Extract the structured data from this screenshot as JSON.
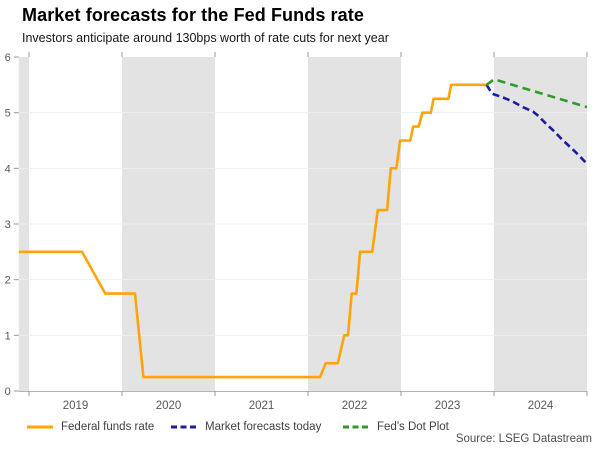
{
  "chart_data": {
    "type": "line",
    "title": "Market forecasts for the Fed Funds rate",
    "subtitle": "Investors anticipate around 130bps worth of rate cuts for next year",
    "source": "Source: LSEG Datastream",
    "ylabel": "",
    "xlabel": "",
    "grid": "horizontal",
    "legend_position": "bottom",
    "y_axis": {
      "min": 0,
      "max": 6,
      "ticks": [
        0,
        1,
        2,
        3,
        4,
        5,
        6
      ]
    },
    "x_axis": {
      "domain": [
        2018.89,
        2025.0
      ],
      "boundaries": [
        2019,
        2020,
        2021,
        2022,
        2023,
        2024,
        2025
      ],
      "labels": [
        "2019",
        "2020",
        "2021",
        "2022",
        "2023",
        "2024"
      ],
      "label_positions": [
        2019.5,
        2020.5,
        2021.5,
        2022.5,
        2023.5,
        2024.5
      ]
    },
    "shaded_bands": [
      [
        2018.89,
        2019.0
      ],
      [
        2020.0,
        2021.0
      ],
      [
        2022.0,
        2023.0
      ],
      [
        2024.0,
        2025.0
      ]
    ],
    "series": [
      {
        "key": "federal-funds-rate",
        "name": "Federal funds rate",
        "color": "#FFA408",
        "style": "solid",
        "dash": "",
        "points": [
          [
            2018.89,
            2.5
          ],
          [
            2019.57,
            2.5
          ],
          [
            2019.82,
            1.75
          ],
          [
            2020.14,
            1.75
          ],
          [
            2020.23,
            0.25
          ],
          [
            2022.13,
            0.25
          ],
          [
            2022.19,
            0.5
          ],
          [
            2022.32,
            0.5
          ],
          [
            2022.39,
            1.0
          ],
          [
            2022.43,
            1.0
          ],
          [
            2022.47,
            1.75
          ],
          [
            2022.52,
            1.75
          ],
          [
            2022.56,
            2.5
          ],
          [
            2022.69,
            2.5
          ],
          [
            2022.75,
            3.25
          ],
          [
            2022.85,
            3.25
          ],
          [
            2022.89,
            4.0
          ],
          [
            2022.95,
            4.0
          ],
          [
            2022.99,
            4.5
          ],
          [
            2023.1,
            4.5
          ],
          [
            2023.13,
            4.75
          ],
          [
            2023.19,
            4.75
          ],
          [
            2023.23,
            5.0
          ],
          [
            2023.32,
            5.0
          ],
          [
            2023.35,
            5.25
          ],
          [
            2023.51,
            5.25
          ],
          [
            2023.54,
            5.5
          ],
          [
            2023.92,
            5.5
          ]
        ]
      },
      {
        "key": "market-forecasts-today",
        "name": "Market forecasts today",
        "color": "#1B1BA3",
        "style": "dashed",
        "dash": "7 4",
        "points": [
          [
            2023.92,
            5.5
          ],
          [
            2023.98,
            5.34
          ],
          [
            2024.1,
            5.27
          ],
          [
            2024.2,
            5.2
          ],
          [
            2024.31,
            5.1
          ],
          [
            2024.42,
            5.02
          ],
          [
            2024.47,
            4.95
          ],
          [
            2024.56,
            4.8
          ],
          [
            2024.65,
            4.66
          ],
          [
            2024.73,
            4.52
          ],
          [
            2024.84,
            4.35
          ],
          [
            2024.92,
            4.22
          ],
          [
            2025.0,
            4.08
          ]
        ]
      },
      {
        "key": "feds-dot-plot",
        "name": "Fed's Dot Plot",
        "color": "#2E9B2E",
        "style": "dashed",
        "dash": "8 5",
        "points": [
          [
            2023.92,
            5.5
          ],
          [
            2024.0,
            5.6
          ],
          [
            2025.0,
            5.1
          ]
        ]
      }
    ],
    "colors": {
      "band": "#e3e3e3",
      "grid": "#efefef",
      "axis": "#b3b3b3",
      "tick": "#999999",
      "label": "#595959"
    }
  }
}
